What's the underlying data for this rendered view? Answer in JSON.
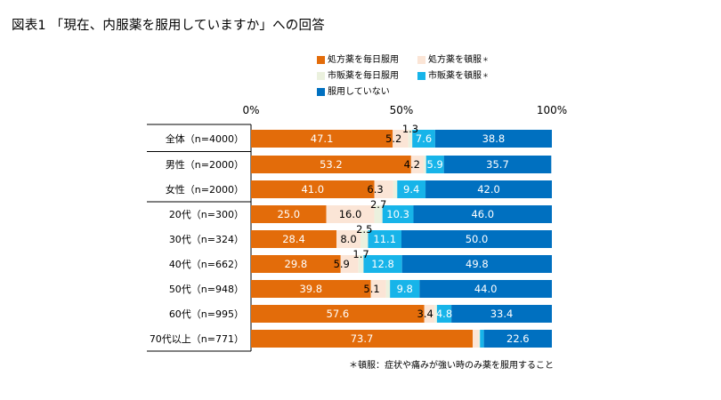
{
  "title": "図表1 「現在、内服薬を服用していますか」への回答",
  "footnote": "＊頓服：症状や痛みが強い時のみ薬を服用すること",
  "chart_data": {
    "type": "stacked_bar_horizontal",
    "axis": {
      "min": 0,
      "max": 100,
      "ticks": [
        "0%",
        "50%",
        "100%"
      ],
      "tick_values": [
        0,
        50,
        100
      ]
    },
    "series": [
      {
        "name": "処方薬を毎日服用",
        "color": "#e36c0a",
        "asterisk": false,
        "label_color": "#ffffff"
      },
      {
        "name": "処方薬を頓服",
        "color": "#fbe5d6",
        "asterisk": true,
        "label_color": "#000000"
      },
      {
        "name": "市販薬を毎日服用",
        "color": "#ebf1de",
        "asterisk": false,
        "label_color": "#000000"
      },
      {
        "name": "市販薬を頓服",
        "color": "#17b4e9",
        "asterisk": true,
        "label_color": "#ffffff"
      },
      {
        "name": "服用していない",
        "color": "#0070c0",
        "asterisk": false,
        "label_color": "#ffffff"
      }
    ],
    "rows": [
      {
        "label": "全体（n=4000）",
        "values": [
          47.1,
          5.2,
          1.3,
          7.6,
          38.8
        ],
        "labels": [
          "47.1",
          "5.2",
          "1.3",
          "7.6",
          "38.8"
        ]
      },
      {
        "label": "男性（n=2000）",
        "values": [
          53.2,
          4.2,
          0.8,
          5.9,
          35.7
        ],
        "labels": [
          "53.2",
          "4.2",
          "",
          "5.9",
          "35.7"
        ]
      },
      {
        "label": "女性（n=2000）",
        "values": [
          41.0,
          6.3,
          1.3,
          9.4,
          42.0
        ],
        "labels": [
          "41.0",
          "6.3",
          "",
          "9.4",
          "42.0"
        ]
      },
      {
        "label": "20代（n=300）",
        "values": [
          25.0,
          16.0,
          2.7,
          10.3,
          46.0
        ],
        "labels": [
          "25.0",
          "16.0",
          "2.7",
          "10.3",
          "46.0"
        ]
      },
      {
        "label": "30代（n=324）",
        "values": [
          28.4,
          8.0,
          2.5,
          11.1,
          50.0
        ],
        "labels": [
          "28.4",
          "8.0",
          "2.5",
          "11.1",
          "50.0"
        ]
      },
      {
        "label": "40代（n=662）",
        "values": [
          29.8,
          5.9,
          1.7,
          12.8,
          49.8
        ],
        "labels": [
          "29.8",
          "5.9",
          "1.7",
          "12.8",
          "49.8"
        ]
      },
      {
        "label": "50代（n=948）",
        "values": [
          39.8,
          5.1,
          1.3,
          9.8,
          44.0
        ],
        "labels": [
          "39.8",
          "5.1",
          "",
          "9.8",
          "44.0"
        ]
      },
      {
        "label": "60代（n=995）",
        "values": [
          57.6,
          3.4,
          0.8,
          4.8,
          33.4
        ],
        "labels": [
          "57.6",
          "3.4",
          "",
          "4.8",
          "33.4"
        ]
      },
      {
        "label": "70代以上（n=771）",
        "values": [
          73.7,
          2.0,
          0.4,
          1.3,
          22.6
        ],
        "labels": [
          "73.7",
          "",
          "",
          "",
          "22.6"
        ]
      }
    ],
    "groups": [
      [
        0
      ],
      [
        1,
        2
      ],
      [
        3,
        4,
        5,
        6,
        7,
        8
      ]
    ]
  }
}
